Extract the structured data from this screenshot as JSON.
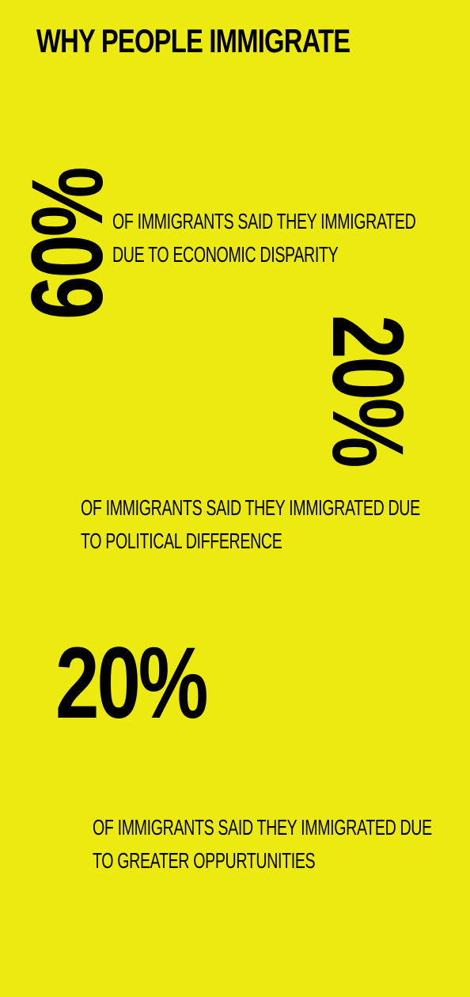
{
  "title": "WHY PEOPLE IMMIGRATE",
  "stats": [
    {
      "value": "60%",
      "lines": [
        "OF IMMIGRANTS SAID THEY IMMIGRATED",
        "DUE TO ECONOMIC DISPARITY"
      ]
    },
    {
      "value": "20%",
      "lines": [
        "OF IMMIGRANTS SAID THEY IMMIGRATED DUE",
        "TO POLITICAL DIFFERENCE"
      ]
    },
    {
      "value": "20%",
      "lines": [
        "OF IMMIGRANTS SAID THEY IMMIGRATED DUE",
        "TO GREATER OPPURTUNITIES"
      ]
    }
  ],
  "colors": {
    "background": "#EDEA12",
    "text": "#000000"
  }
}
